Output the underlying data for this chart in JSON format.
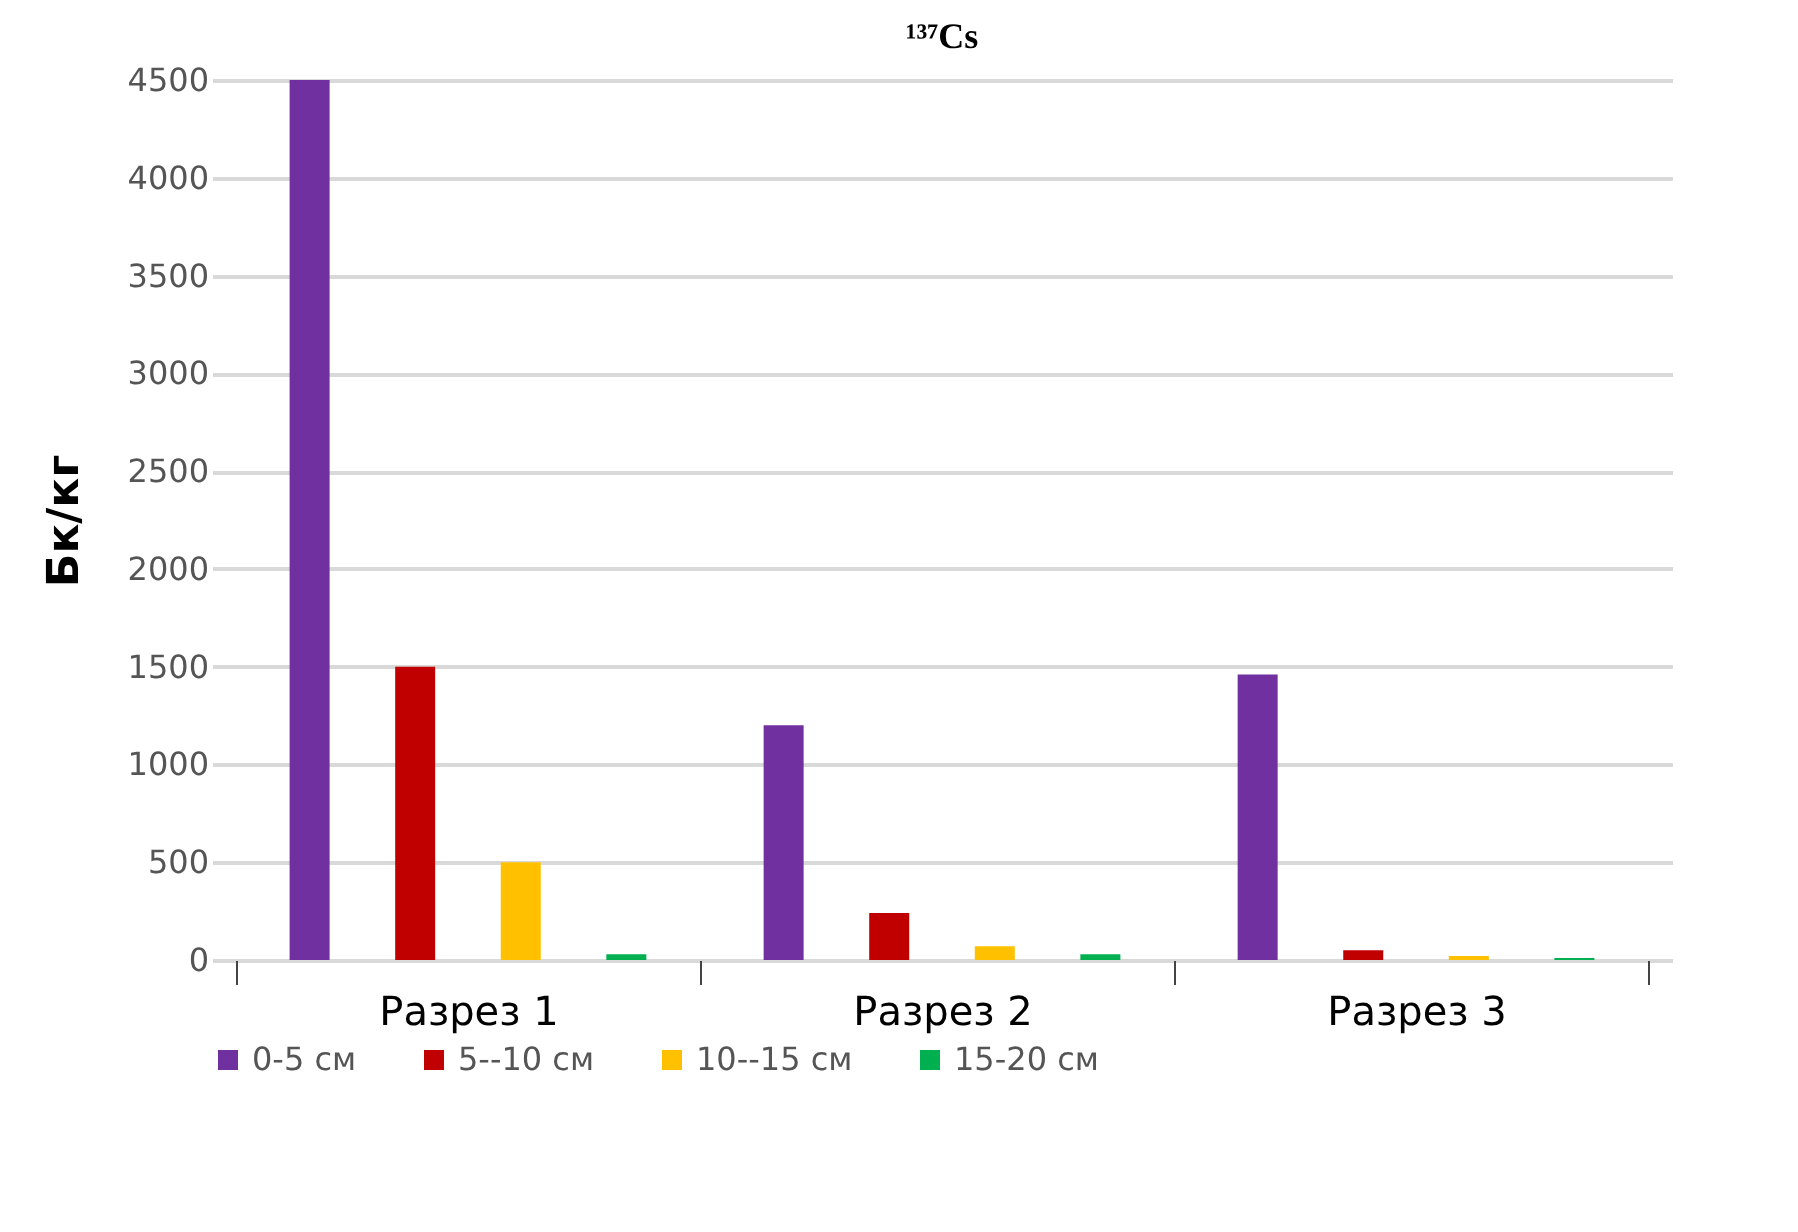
{
  "chart_data": {
    "type": "bar",
    "title": "¹³⁷Cs",
    "ylabel": "Бк/кг",
    "categories": [
      "Разрез 1",
      "Разрез 2",
      "Разрез 3"
    ],
    "series": [
      {
        "name": "0-5 см",
        "color": "#7030a0",
        "values": [
          4500,
          1200,
          1460
        ]
      },
      {
        "name": "5--10 см",
        "color": "#c00000",
        "values": [
          1500,
          240,
          50
        ]
      },
      {
        "name": "10--15 см",
        "color": "#ffc000",
        "values": [
          500,
          70,
          20
        ]
      },
      {
        "name": "15-20 см",
        "color": "#00b050",
        "values": [
          30,
          30,
          10
        ]
      }
    ],
    "ylim": [
      0,
      4500
    ],
    "yticks": [
      0,
      500,
      1000,
      1500,
      2000,
      2500,
      3000,
      3500,
      4000,
      4500
    ],
    "grid": "y",
    "legend": "bottom"
  }
}
